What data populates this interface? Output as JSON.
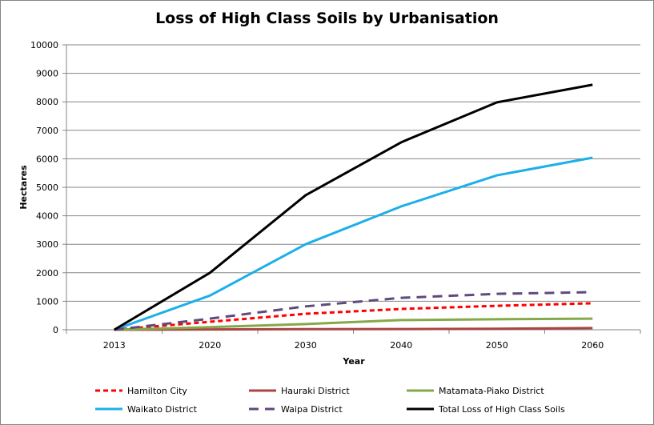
{
  "chart_data": {
    "type": "line",
    "title": "Loss of High Class Soils by Urbanisation",
    "xlabel": "Year",
    "ylabel": "Hectares",
    "categories": [
      "2013",
      "2020",
      "2030",
      "2040",
      "2050",
      "2060"
    ],
    "ylim": [
      0,
      10000
    ],
    "yticks": [
      0,
      1000,
      2000,
      3000,
      4000,
      5000,
      6000,
      7000,
      8000,
      9000,
      10000
    ],
    "grid": "horizontal",
    "legend_position": "bottom",
    "series": [
      {
        "name": "Hamilton City",
        "color": "#FF0000",
        "dash": "short-dash",
        "values": [
          0,
          280,
          560,
          730,
          840,
          930
        ]
      },
      {
        "name": "Hauraki District",
        "color": "#A94442",
        "dash": "solid",
        "values": [
          0,
          10,
          20,
          25,
          35,
          60
        ]
      },
      {
        "name": "Matamata-Piako District",
        "color": "#86A84A",
        "dash": "solid",
        "values": [
          0,
          90,
          200,
          340,
          370,
          390
        ]
      },
      {
        "name": "Waikato District",
        "color": "#1CB0E8",
        "dash": "solid",
        "values": [
          0,
          1200,
          3000,
          4330,
          5420,
          6040
        ]
      },
      {
        "name": "Waipa District",
        "color": "#5F4A7D",
        "dash": "long-dash",
        "values": [
          0,
          390,
          820,
          1120,
          1260,
          1320
        ]
      },
      {
        "name": "Total Loss of High Class Soils",
        "color": "#000000",
        "dash": "solid",
        "values": [
          0,
          2000,
          4720,
          6580,
          7980,
          8600
        ]
      }
    ]
  }
}
